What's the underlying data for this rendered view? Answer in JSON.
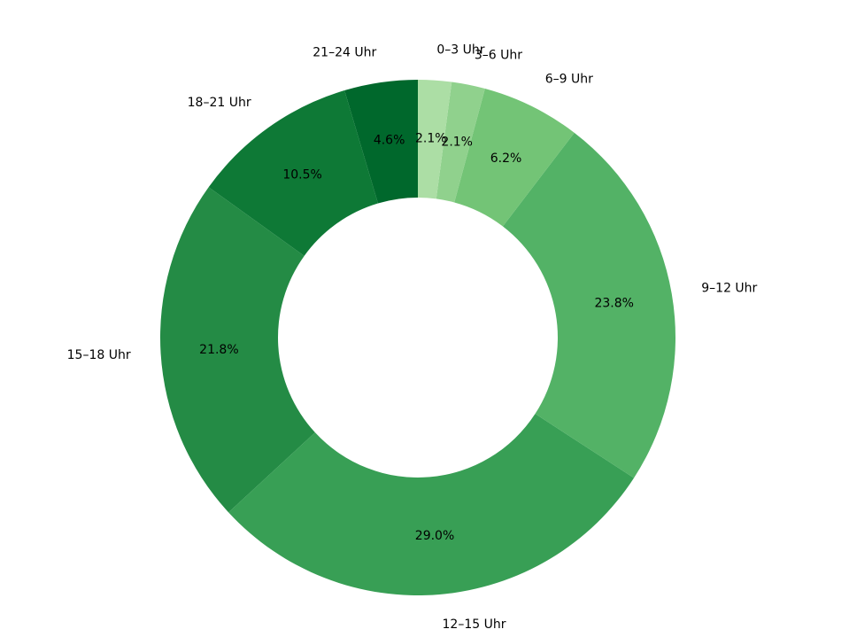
{
  "chart_data": {
    "type": "pie",
    "donut": true,
    "title": "",
    "counterclockwise": true,
    "start_angle_deg": 90,
    "slices": [
      {
        "label": "21–24 Uhr",
        "value": 4.6,
        "pct_label": "4.6%",
        "color": "#00682c"
      },
      {
        "label": "18–21 Uhr",
        "value": 10.5,
        "pct_label": "10.5%",
        "color": "#0e7936"
      },
      {
        "label": "15–18 Uhr",
        "value": 21.8,
        "pct_label": "21.8%",
        "color": "#248b45"
      },
      {
        "label": "12–15 Uhr",
        "value": 29.0,
        "pct_label": "29.0%",
        "color": "#389f55"
      },
      {
        "label": "9–12 Uhr",
        "value": 23.8,
        "pct_label": "23.8%",
        "color": "#53b266"
      },
      {
        "label": "6–9 Uhr",
        "value": 6.2,
        "pct_label": "6.2%",
        "color": "#73c476"
      },
      {
        "label": "3–6 Uhr",
        "value": 2.1,
        "pct_label": "2.1%",
        "color": "#90d18d"
      },
      {
        "label": "0–3 Uhr",
        "value": 2.1,
        "pct_label": "2.1%",
        "color": "#acdea5"
      }
    ]
  }
}
